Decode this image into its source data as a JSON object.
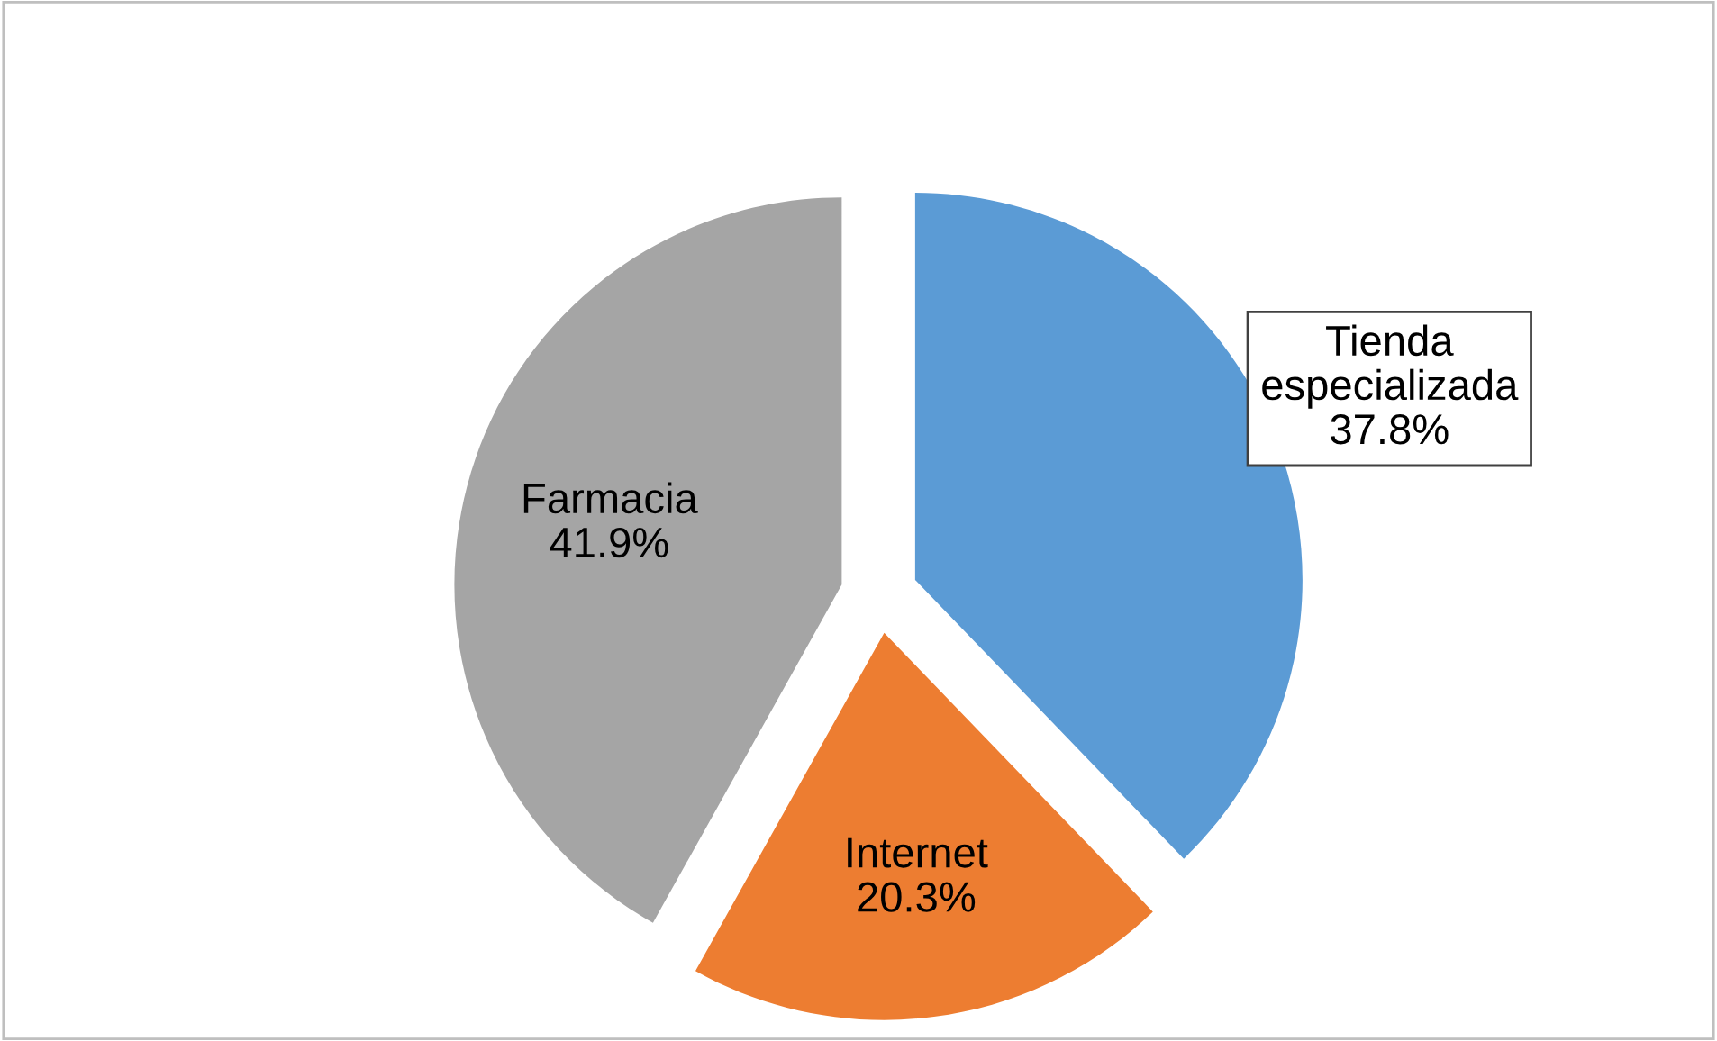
{
  "chart_data": {
    "type": "pie",
    "categories": [
      "Tienda\nespecializada",
      "Internet",
      "Farmacia"
    ],
    "values": [
      37.8,
      20.3,
      41.9
    ],
    "colors": [
      "#5b9bd5",
      "#ed7d31",
      "#a5a5a5"
    ],
    "value_labels": [
      "37.8%",
      "20.3%",
      "41.9%"
    ],
    "legend": false
  }
}
